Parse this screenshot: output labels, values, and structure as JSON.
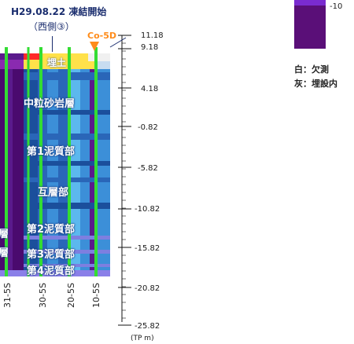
{
  "title": "H29.08.22 凍結開始",
  "subtitle": "（西側③）",
  "co_marker": "Co-5D",
  "ticks": [
    "11.18",
    "9.18",
    "4.18",
    "-0.82",
    "-5.82",
    "-10.82",
    "-15.82",
    "-20.82",
    "-25.82"
  ],
  "unit": "(TP m)",
  "layers": {
    "fill": "埋土",
    "sandstone": "中粒砂岩層",
    "mud1": "第1泥質部",
    "alternation": "互層部",
    "mud2": "第2泥質部",
    "mud3": "第3泥質部",
    "mud4": "第4泥質部",
    "left1": "層",
    "left2": "層"
  },
  "boreholes": [
    "31-5S",
    "30-5S",
    "20-5S",
    "10-5S"
  ],
  "legend": {
    "value_label": "-10",
    "color": "#5a0f8c"
  },
  "notes": {
    "white": "白：欠測",
    "gray": "灰：埋設内"
  },
  "colors": {
    "deep_purple": "#4a0a6e",
    "purple": "#5a1a8c",
    "blue_dark": "#1b4f9c",
    "blue": "#2a66b8",
    "blue_light": "#3c8fd8",
    "cyan": "#5cb8ee",
    "green_line": "#33dd33",
    "orange": "#ff8c1a"
  }
}
